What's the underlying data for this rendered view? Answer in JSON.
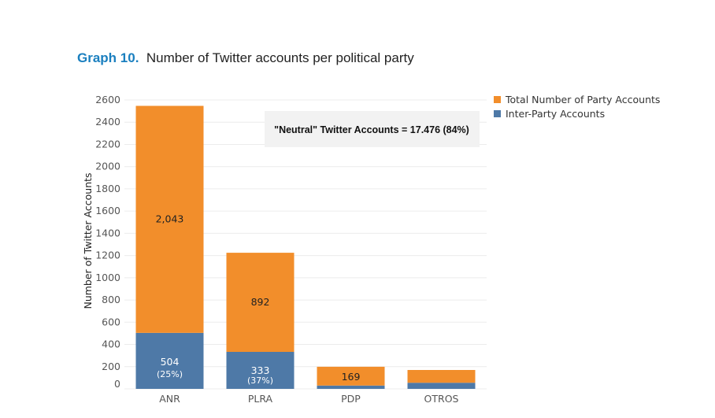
{
  "title": {
    "prefix": "Graph 10.",
    "text": "Number of Twitter accounts per political party"
  },
  "chart_data": {
    "type": "bar",
    "stacked": true,
    "categories": [
      "ANR",
      "PLRA",
      "PDP",
      "OTROS"
    ],
    "series": [
      {
        "name": "Inter-Party Accounts",
        "color": "#4e79a7",
        "values": [
          504,
          333,
          30,
          55
        ]
      },
      {
        "name": "Total Number of Party Accounts",
        "color": "#f28e2b",
        "values": [
          2043,
          892,
          169,
          115
        ]
      }
    ],
    "bar_labels": [
      {
        "category": "ANR",
        "inter": "504",
        "inter_pct": "(25%)",
        "party": "2,043"
      },
      {
        "category": "PLRA",
        "inter": "333",
        "inter_pct": "(37%)",
        "party": "892"
      },
      {
        "category": "PDP",
        "inter": "",
        "inter_pct": "",
        "party": "169"
      },
      {
        "category": "OTROS",
        "inter": "",
        "inter_pct": "",
        "party": ""
      }
    ],
    "ylabel": "Number of Twitter Accounts",
    "xlabel": "",
    "ylim": [
      0,
      2600
    ],
    "yticks": [
      0,
      200,
      400,
      600,
      800,
      1000,
      1200,
      1400,
      1600,
      1800,
      2000,
      2200,
      2400,
      2600
    ],
    "legend_position": "top-right",
    "grid": true,
    "annotation": "\"Neutral\" Twitter Accounts = 17.476 (84%)"
  }
}
